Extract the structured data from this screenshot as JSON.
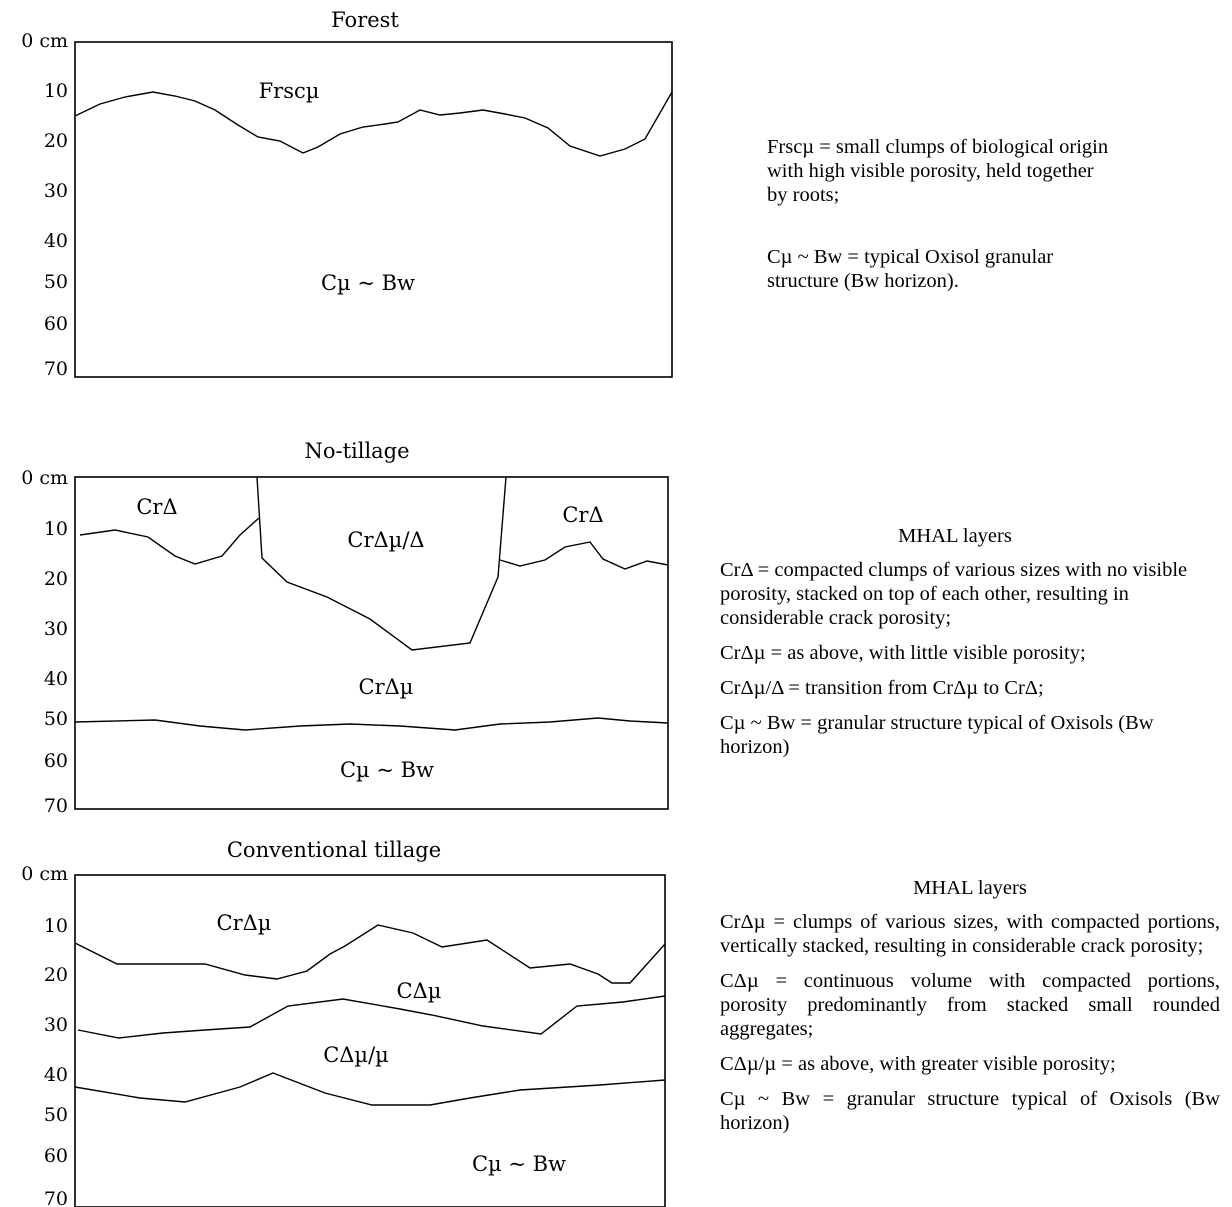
{
  "panels": [
    {
      "title": "Forest",
      "depth_ticks": [
        "0 cm",
        "10",
        "20",
        "30",
        "40",
        "50",
        "60",
        "70"
      ],
      "layers": [
        "Frscµ",
        "Cµ ~ Bw"
      ]
    },
    {
      "title": "No-tillage",
      "depth_ticks": [
        "0 cm",
        "10",
        "20",
        "30",
        "40",
        "50",
        "60",
        "70"
      ],
      "layers": [
        "CrΔ",
        "CrΔµ/Δ",
        "CrΔ",
        "CrΔµ",
        "Cµ ~ Bw"
      ]
    },
    {
      "title": "Conventional tillage",
      "depth_ticks": [
        "0 cm",
        "10",
        "20",
        "30",
        "40",
        "50",
        "60",
        "70"
      ],
      "layers": [
        "CrΔµ",
        "CΔµ",
        "CΔµ/µ",
        "Cµ ~ Bw"
      ]
    }
  ],
  "legends": {
    "forest": [
      "Frscµ = small clumps of biological origin with high visible porosity, held together by roots;",
      "Cµ ~ Bw = typical Oxisol granular structure (Bw horizon)."
    ],
    "notill": {
      "heading": "MHAL layers",
      "items": [
        "CrΔ =  compacted clumps of various sizes with no visible porosity, stacked on top of each other, resulting in considerable crack porosity;",
        "CrΔµ = as above, with little visible porosity;",
        "CrΔµ/Δ = transition from CrΔµ to CrΔ;",
        "Cµ ~ Bw = granular structure typical of Oxisols (Bw horizon)"
      ]
    },
    "conventional": {
      "heading": "MHAL layers",
      "items": [
        "CrΔµ = clumps of various sizes, with compacted portions, vertically stacked, resulting in considerable crack porosity;",
        "CΔµ = continuous volume with compacted portions, porosity predominantly from stacked small rounded aggregates;",
        "CΔµ/µ = as above, with greater visible porosity;",
        "Cµ ~ Bw = granular structure typical of Oxisols (Bw horizon)"
      ]
    }
  }
}
